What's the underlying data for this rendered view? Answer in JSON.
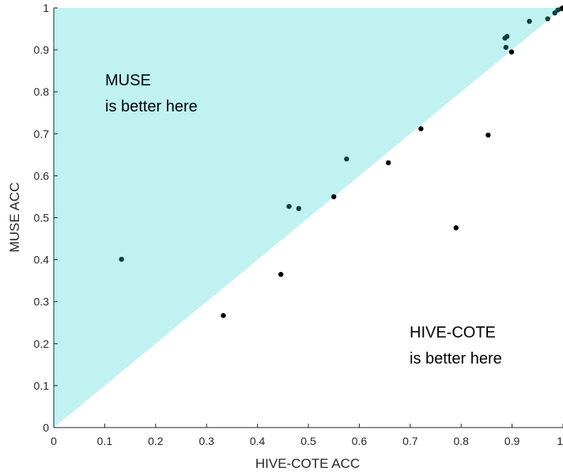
{
  "chart_data": {
    "type": "scatter",
    "xlabel": "HIVE-COTE ACC",
    "ylabel": "MUSE ACC",
    "xlim": [
      0,
      1
    ],
    "ylim": [
      0,
      1
    ],
    "x_ticks": [
      "0",
      "0.1",
      "0.2",
      "0.3",
      "0.4",
      "0.5",
      "0.6",
      "0.7",
      "0.8",
      "0.9",
      "1"
    ],
    "y_ticks": [
      "0",
      "0.1",
      "0.2",
      "0.3",
      "0.4",
      "0.5",
      "0.6",
      "0.7",
      "0.8",
      "0.9",
      "1"
    ],
    "grid": false,
    "region_color": "#c0f2f2",
    "annotations": {
      "muse_better": [
        "MUSE",
        "is better here"
      ],
      "hivecote_better": [
        "HIVE-COTE",
        "is better here"
      ]
    },
    "points": [
      {
        "x": 0.133,
        "y": 0.401
      },
      {
        "x": 0.333,
        "y": 0.267
      },
      {
        "x": 0.446,
        "y": 0.365
      },
      {
        "x": 0.462,
        "y": 0.527
      },
      {
        "x": 0.481,
        "y": 0.522
      },
      {
        "x": 0.55,
        "y": 0.55
      },
      {
        "x": 0.575,
        "y": 0.64
      },
      {
        "x": 0.657,
        "y": 0.631
      },
      {
        "x": 0.721,
        "y": 0.712
      },
      {
        "x": 0.79,
        "y": 0.476
      },
      {
        "x": 0.853,
        "y": 0.697
      },
      {
        "x": 0.886,
        "y": 0.928
      },
      {
        "x": 0.89,
        "y": 0.932
      },
      {
        "x": 0.888,
        "y": 0.906
      },
      {
        "x": 0.899,
        "y": 0.895
      },
      {
        "x": 0.934,
        "y": 0.968
      },
      {
        "x": 0.97,
        "y": 0.974
      },
      {
        "x": 0.984,
        "y": 0.988
      },
      {
        "x": 0.99,
        "y": 0.995
      },
      {
        "x": 0.997,
        "y": 0.998
      },
      {
        "x": 1.0,
        "y": 1.0
      }
    ]
  }
}
